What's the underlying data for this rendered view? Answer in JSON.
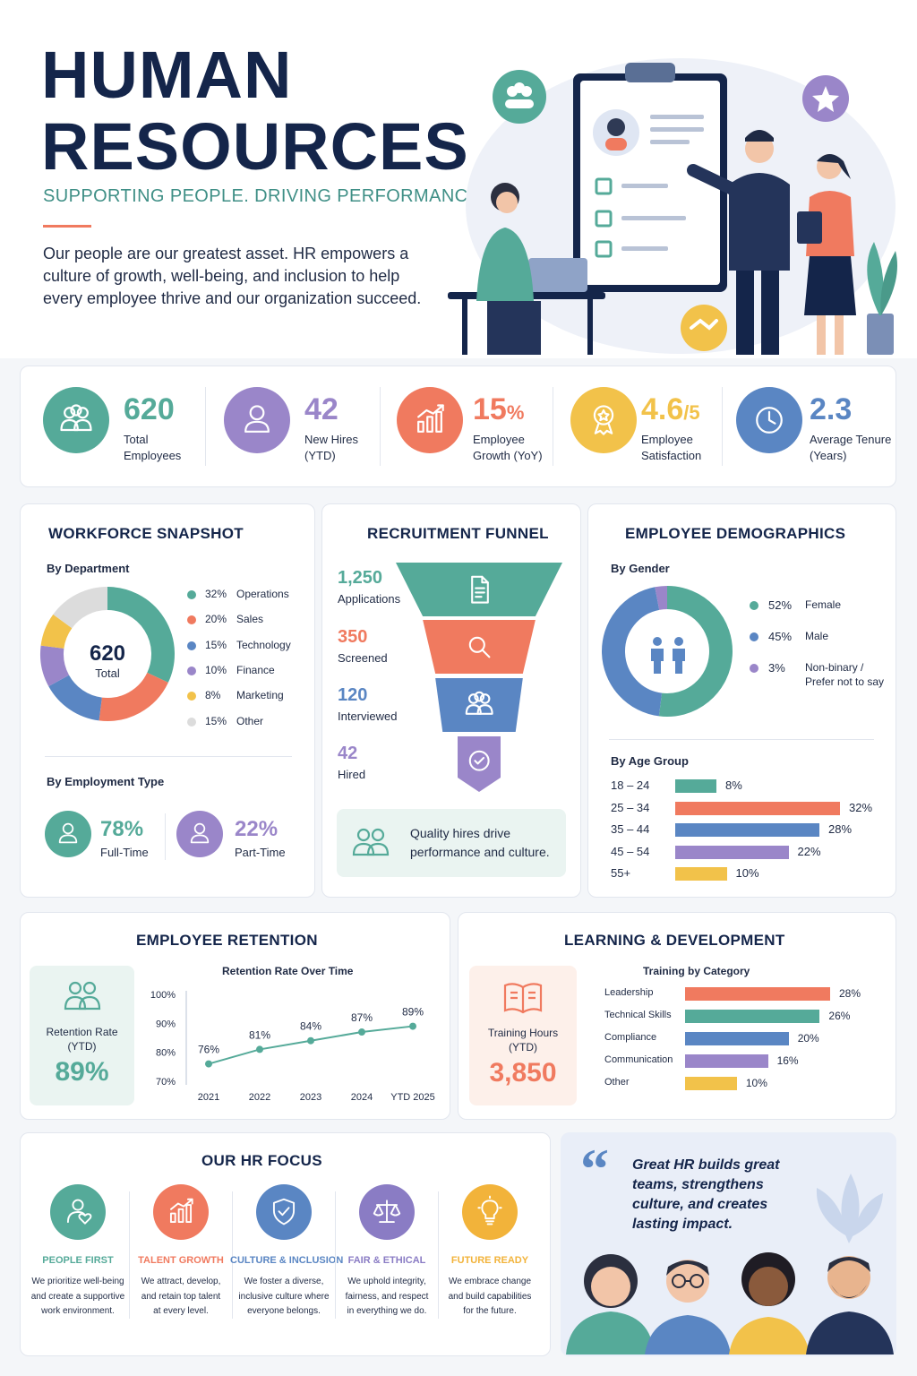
{
  "header": {
    "title_line1": "HUMAN",
    "title_line2": "RESOURCES",
    "tagline": "SUPPORTING PEOPLE. DRIVING PERFORMANCE.",
    "intro_lines": [
      "Our people are our greatest asset. HR empowers a",
      "culture of growth, well-being, and inclusion to help",
      "every employee thrive and our organization succeed."
    ]
  },
  "colors": {
    "navy": "#14254a",
    "teal": "#55aa99",
    "coral": "#f07a5f",
    "blue": "#5a86c3",
    "purple": "#9a86c9",
    "yellow": "#f2c24a",
    "gray": "#dcdcdc"
  },
  "kpis": [
    {
      "value": "620",
      "unit": "",
      "label1": "Total",
      "label2": "Employees",
      "color": "#55aa99",
      "icon": "people-icon"
    },
    {
      "value": "42",
      "unit": "",
      "label1": "New Hires",
      "label2": "(YTD)",
      "color": "#9a86c9",
      "icon": "person-icon"
    },
    {
      "value": "15",
      "unit": "%",
      "label1": "Employee",
      "label2": "Growth (YoY)",
      "color": "#f07a5f",
      "icon": "growth-chart-icon"
    },
    {
      "value": "4.6",
      "unit": "/5",
      "label1": "Employee",
      "label2": "Satisfaction",
      "color": "#f2c24a",
      "icon": "award-icon"
    },
    {
      "value": "2.3",
      "unit": "",
      "label1": "Average Tenure",
      "label2": "(Years)",
      "color": "#5a86c3",
      "icon": "clock-icon"
    }
  ],
  "workforce": {
    "title": "WORKFORCE SNAPSHOT",
    "by_department": "By Department",
    "center_value": "620",
    "center_label": "Total",
    "by_employment": "By Employment Type",
    "employment": [
      {
        "value": "78%",
        "label": "Full-Time",
        "color": "#55aa99",
        "icon": "person-icon"
      },
      {
        "value": "22%",
        "label": "Part-Time",
        "color": "#9a86c9",
        "icon": "person-icon"
      }
    ]
  },
  "recruitment": {
    "title": "RECRUITMENT FUNNEL",
    "note_line1": "Quality hires drive",
    "note_line2": "performance and culture.",
    "note_icon": "people-icon"
  },
  "demographics": {
    "title": "EMPLOYEE DEMOGRAPHICS",
    "by_gender": "By Gender",
    "by_age": "By Age Group",
    "gender_icon": "gender-icon"
  },
  "retention": {
    "title": "EMPLOYEE RETENTION",
    "kpi_label1": "Retention Rate",
    "kpi_label2": "(YTD)",
    "kpi_value": "89%",
    "chart_title": "Retention Rate Over Time",
    "icon": "people-icon"
  },
  "learning": {
    "title": "LEARNING & DEVELOPMENT",
    "kpi_label1": "Training Hours",
    "kpi_label2": "(YTD)",
    "kpi_value": "3,850",
    "chart_title": "Training by Category",
    "icon": "book-icon"
  },
  "focus": {
    "title": "OUR HR FOCUS",
    "items": [
      {
        "title": "PEOPLE FIRST",
        "lines": [
          "We prioritize well-being",
          "and create a supportive",
          "work environment."
        ],
        "color": "#55aa99",
        "icon": "person-heart-icon"
      },
      {
        "title": "TALENT GROWTH",
        "lines": [
          "We attract, develop,",
          "and retain top talent",
          "at every level."
        ],
        "color": "#f07a5f",
        "icon": "growth-chart-icon"
      },
      {
        "title": "CULTURE & INCLUSION",
        "lines": [
          "We foster a diverse,",
          "inclusive culture where",
          "everyone belongs."
        ],
        "color": "#5a86c3",
        "icon": "shield-check-icon"
      },
      {
        "title": "FAIR & ETHICAL",
        "lines": [
          "We uphold integrity,",
          "fairness, and respect",
          "in everything we do."
        ],
        "color": "#8a7cc4",
        "icon": "scales-icon"
      },
      {
        "title": "FUTURE READY",
        "lines": [
          "We embrace change",
          "and build capabilities",
          "for the future."
        ],
        "color": "#f2b33a",
        "icon": "lightbulb-icon"
      }
    ]
  },
  "quote": {
    "mark": "“",
    "lines": [
      "Great HR builds great",
      "teams, strengthens",
      "culture, and creates",
      "lasting impact."
    ]
  },
  "chart_data": [
    {
      "type": "pie",
      "title": "By Department",
      "categories": [
        "Operations",
        "Sales",
        "Technology",
        "Finance",
        "Marketing",
        "Other"
      ],
      "values": [
        32,
        20,
        15,
        10,
        8,
        15
      ],
      "labels": [
        "32%",
        "20%",
        "15%",
        "10%",
        "8%",
        "15%"
      ],
      "colors": [
        "#55aa99",
        "#f07a5f",
        "#5a86c3",
        "#9a86c9",
        "#f2c24a",
        "#dcdcdc"
      ]
    },
    {
      "type": "bar",
      "title": "RECRUITMENT FUNNEL",
      "categories": [
        "Applications",
        "Screened",
        "Interviewed",
        "Hired"
      ],
      "values": [
        1250,
        350,
        120,
        42
      ],
      "labels": [
        "1,250",
        "350",
        "120",
        "42"
      ],
      "colors": [
        "#55aa99",
        "#f07a5f",
        "#5a86c3",
        "#9a86c9"
      ],
      "icons": [
        "document-icon",
        "search-icon",
        "people-icon",
        "check-circle-icon"
      ]
    },
    {
      "type": "pie",
      "title": "By Gender",
      "categories": [
        "Female",
        "Male",
        "Non-binary / Prefer not to say"
      ],
      "label_lines": [
        [
          "Female"
        ],
        [
          "Male"
        ],
        [
          "Non-binary /",
          "Prefer not to say"
        ]
      ],
      "values": [
        52,
        45,
        3
      ],
      "labels": [
        "52%",
        "45%",
        "3%"
      ],
      "colors": [
        "#55aa99",
        "#5a86c3",
        "#9a86c9"
      ]
    },
    {
      "type": "bar",
      "title": "By Age Group",
      "categories": [
        "18 – 24",
        "25 – 34",
        "35 – 44",
        "45 – 54",
        "55+"
      ],
      "values": [
        8,
        32,
        28,
        22,
        10
      ],
      "labels": [
        "8%",
        "32%",
        "28%",
        "22%",
        "10%"
      ],
      "colors": [
        "#55aa99",
        "#f07a5f",
        "#5a86c3",
        "#9a86c9",
        "#f2c24a"
      ]
    },
    {
      "type": "line",
      "title": "Retention Rate Over Time",
      "x": [
        "2021",
        "2022",
        "2023",
        "2024",
        "YTD 2025"
      ],
      "values": [
        76,
        81,
        84,
        87,
        89
      ],
      "labels": [
        "76%",
        "81%",
        "84%",
        "87%",
        "89%"
      ],
      "ylim": [
        70,
        100
      ],
      "yticks": [
        100,
        90,
        80,
        70
      ],
      "ytick_labels": [
        "100%",
        "90%",
        "80%",
        "70%"
      ],
      "color": "#55aa99"
    },
    {
      "type": "bar",
      "title": "Training by Category",
      "categories": [
        "Leadership",
        "Technical Skills",
        "Compliance",
        "Communication",
        "Other"
      ],
      "values": [
        28,
        26,
        20,
        16,
        10
      ],
      "labels": [
        "28%",
        "26%",
        "20%",
        "16%",
        "10%"
      ],
      "colors": [
        "#f07a5f",
        "#55aa99",
        "#5a86c3",
        "#9a86c9",
        "#f2c24a"
      ]
    }
  ]
}
